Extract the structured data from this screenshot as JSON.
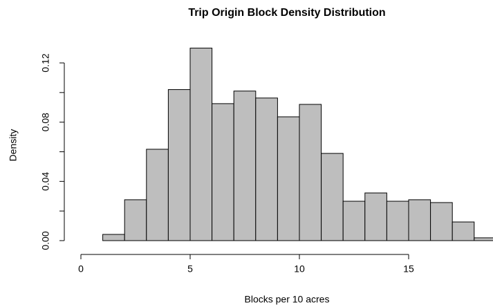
{
  "chart_data": {
    "type": "histogram",
    "title": "Trip Origin Block Density Distribution",
    "xlabel": "Blocks per 10 acres",
    "ylabel": "Density",
    "bins": [
      0,
      1,
      2,
      3,
      4,
      5,
      6,
      7,
      8,
      9,
      10,
      11,
      12,
      13,
      14,
      15,
      16,
      17,
      18,
      19
    ],
    "values": [
      0,
      0.0042,
      0.0276,
      0.0617,
      0.102,
      0.13,
      0.0925,
      0.101,
      0.0963,
      0.0836,
      0.092,
      0.0589,
      0.0266,
      0.0322,
      0.0266,
      0.0276,
      0.0257,
      0.0126,
      0.0019
    ],
    "color": "#bebebe",
    "xlim": [
      0,
      19
    ],
    "xticks": [
      0,
      5,
      10,
      15
    ],
    "ylim": [
      0,
      0.12
    ],
    "yticks": [
      {
        "value": 0,
        "label": "0.00"
      },
      {
        "value": 0.04,
        "label": "0.04"
      },
      {
        "value": 0.08,
        "label": "0.08"
      },
      {
        "value": 0.12,
        "label": "0.12"
      }
    ],
    "yminor_ticks": [
      0.02,
      0.06,
      0.1
    ]
  }
}
